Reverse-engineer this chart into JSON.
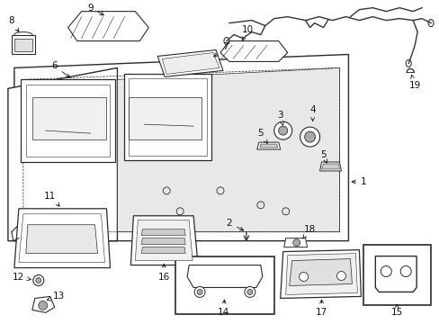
{
  "bg_color": "#ffffff",
  "line_color": "#2a2a2a",
  "label_color": "#111111",
  "fig_width": 4.89,
  "fig_height": 3.6,
  "dpi": 100,
  "wire_color": "#333333",
  "part_fill": "#f5f5f5",
  "shade_fill": "#d8d8d8"
}
